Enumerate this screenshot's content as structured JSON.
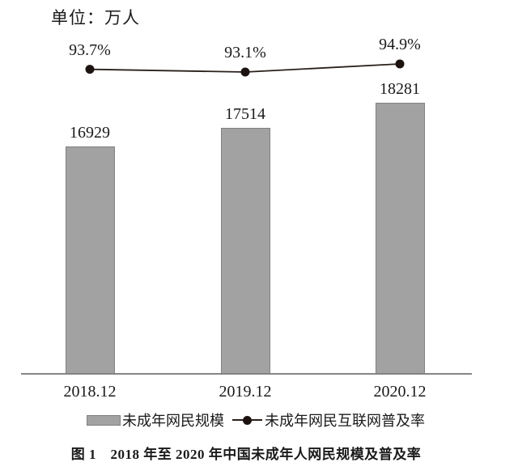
{
  "unit_label": "单位：万人",
  "legend": {
    "bar_label": "未成年网民规模",
    "line_label": "未成年网民互联网普及率"
  },
  "caption": "图 1　2018 年至 2020 年中国未成年人网民规模及普及率",
  "colors": {
    "bar_fill": "#a2a2a2",
    "bar_border": "#818181",
    "axis_color": "#868686",
    "line_color": "#2a201c",
    "dot_color": "#1c1311",
    "text_color": "#1a1a1a",
    "background": "#ffffff"
  },
  "chart_data": {
    "type": "bar",
    "subtype": "bar-line-combo",
    "title": "图 1　2018 年至 2020 年中国未成年人网民规模及普及率",
    "unit_note": "单位：万人",
    "categories": [
      "2018.12",
      "2019.12",
      "2020.12"
    ],
    "series": [
      {
        "name": "未成年网民规模",
        "type": "bar",
        "unit": "万人",
        "values": [
          16929,
          17514,
          18281
        ]
      },
      {
        "name": "未成年网民互联网普及率",
        "type": "line",
        "unit": "%",
        "values": [
          93.7,
          93.1,
          94.9
        ]
      }
    ],
    "grid": false,
    "y_axis_visible": false,
    "data_labels_visible": true,
    "legend_position": "bottom"
  }
}
